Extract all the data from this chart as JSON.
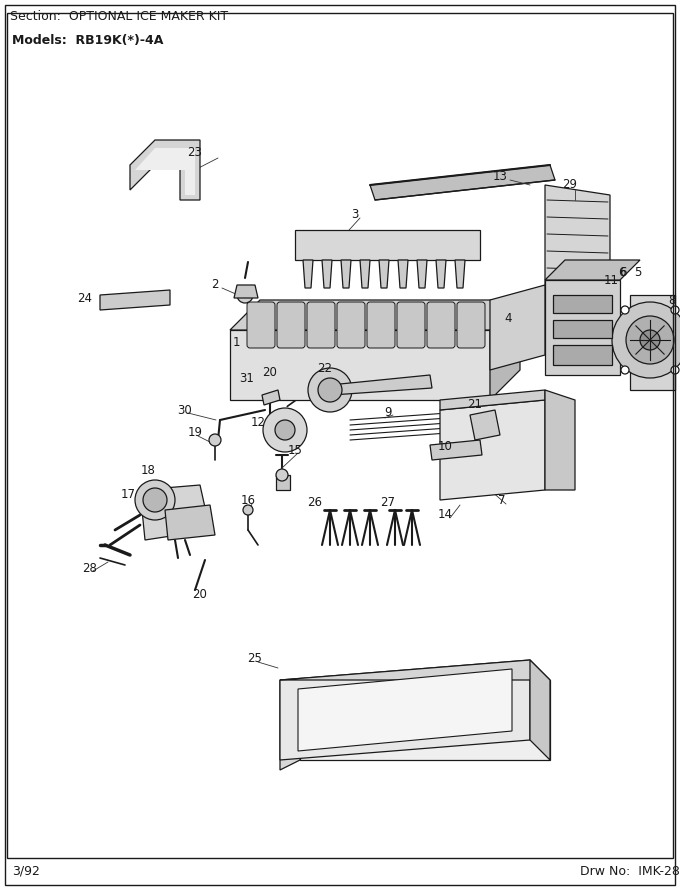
{
  "title_section": "Section:  OPTIONAL ICE MAKER KIT",
  "title_model": "Models:  RB19K(*)-4A",
  "footer_left": "3/92",
  "footer_right": "Drw No:  IMK-28",
  "bg_color": "#ffffff",
  "border_color": "#000000",
  "text_color": "#000000",
  "figsize": [
    6.8,
    8.9
  ],
  "dpi": 100
}
